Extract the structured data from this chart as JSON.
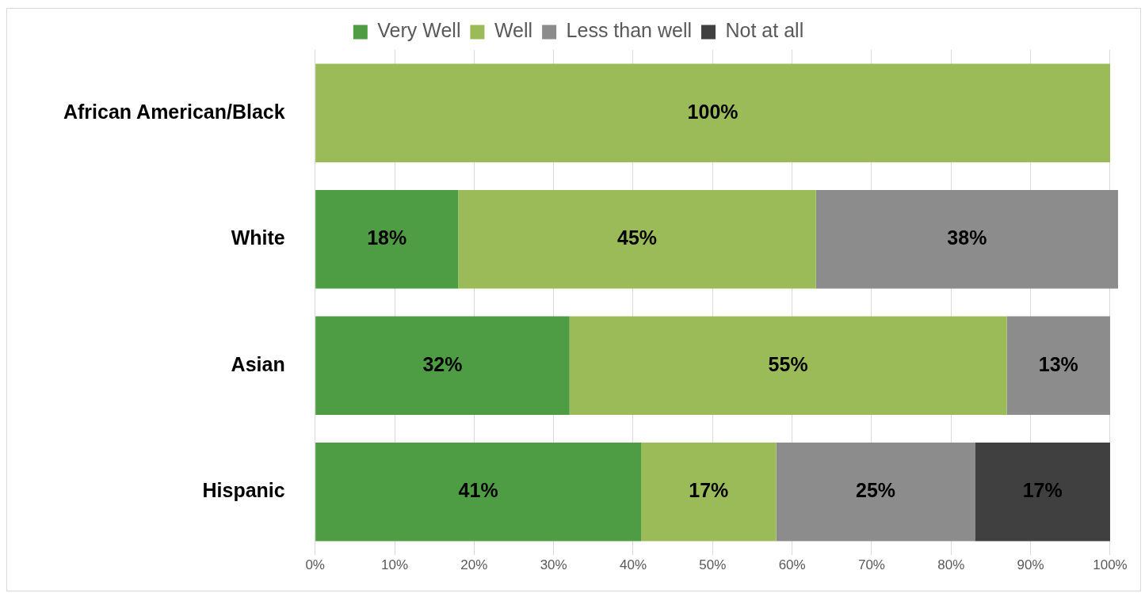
{
  "chart_data": {
    "type": "bar",
    "orientation": "horizontal",
    "stacked": true,
    "categories": [
      "African American/Black",
      "White",
      "Asian",
      "Hispanic"
    ],
    "series": [
      {
        "name": "Very Well",
        "color": "#4e9d44",
        "values": [
          null,
          18,
          32,
          41
        ],
        "value_labels": [
          null,
          "18%",
          "32%",
          "41%"
        ]
      },
      {
        "name": "Well",
        "color": "#9bbb59",
        "values": [
          100,
          45,
          55,
          17
        ],
        "value_labels": [
          "100%",
          "45%",
          "55%",
          "17%"
        ]
      },
      {
        "name": "Less than well",
        "color": "#8c8c8c",
        "values": [
          null,
          38,
          13,
          25
        ],
        "value_labels": [
          null,
          "38%",
          "13%",
          "25%"
        ]
      },
      {
        "name": "Not at all",
        "color": "#404040",
        "values": [
          null,
          null,
          null,
          17
        ],
        "value_labels": [
          null,
          null,
          null,
          "17%"
        ]
      }
    ],
    "xlim": [
      0,
      101
    ],
    "xticks": [
      {
        "value": 0,
        "label": "0%"
      },
      {
        "value": 10,
        "label": "10%"
      },
      {
        "value": 20,
        "label": "20%"
      },
      {
        "value": 30,
        "label": "30%"
      },
      {
        "value": 40,
        "label": "40%"
      },
      {
        "value": 50,
        "label": "50%"
      },
      {
        "value": 60,
        "label": "60%"
      },
      {
        "value": 70,
        "label": "70%"
      },
      {
        "value": 80,
        "label": "80%"
      },
      {
        "value": 90,
        "label": "90%"
      },
      {
        "value": 100,
        "label": "100%"
      }
    ],
    "grid": "x",
    "legend": "top"
  }
}
